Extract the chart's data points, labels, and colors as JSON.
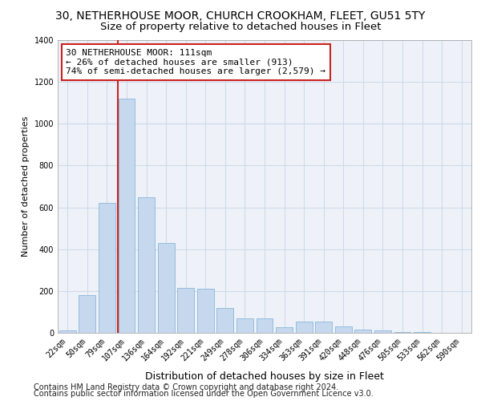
{
  "title": "30, NETHERHOUSE MOOR, CHURCH CROOKHAM, FLEET, GU51 5TY",
  "subtitle": "Size of property relative to detached houses in Fleet",
  "xlabel": "Distribution of detached houses by size in Fleet",
  "ylabel": "Number of detached properties",
  "categories": [
    "22sqm",
    "50sqm",
    "79sqm",
    "107sqm",
    "136sqm",
    "164sqm",
    "192sqm",
    "221sqm",
    "249sqm",
    "278sqm",
    "306sqm",
    "334sqm",
    "363sqm",
    "391sqm",
    "420sqm",
    "448sqm",
    "476sqm",
    "505sqm",
    "533sqm",
    "562sqm",
    "590sqm"
  ],
  "values": [
    10,
    180,
    620,
    1120,
    650,
    430,
    215,
    210,
    120,
    70,
    70,
    25,
    55,
    55,
    30,
    15,
    10,
    5,
    2,
    1,
    0
  ],
  "bar_color": "#c5d8ee",
  "bar_edge_color": "#7aadd4",
  "grid_color": "#d0daea",
  "background_color": "#eef2f8",
  "vline_color": "#cc2222",
  "annotation_text": "30 NETHERHOUSE MOOR: 111sqm\n← 26% of detached houses are smaller (913)\n74% of semi-detached houses are larger (2,579) →",
  "annotation_box_color": "#ffffff",
  "annotation_box_edge": "#cc2222",
  "ylim": [
    0,
    1400
  ],
  "yticks": [
    0,
    200,
    400,
    600,
    800,
    1000,
    1200,
    1400
  ],
  "footer1": "Contains HM Land Registry data © Crown copyright and database right 2024.",
  "footer2": "Contains public sector information licensed under the Open Government Licence v3.0.",
  "title_fontsize": 10,
  "subtitle_fontsize": 9.5,
  "xlabel_fontsize": 9,
  "ylabel_fontsize": 8,
  "tick_fontsize": 7,
  "annotation_fontsize": 8,
  "footer_fontsize": 7
}
